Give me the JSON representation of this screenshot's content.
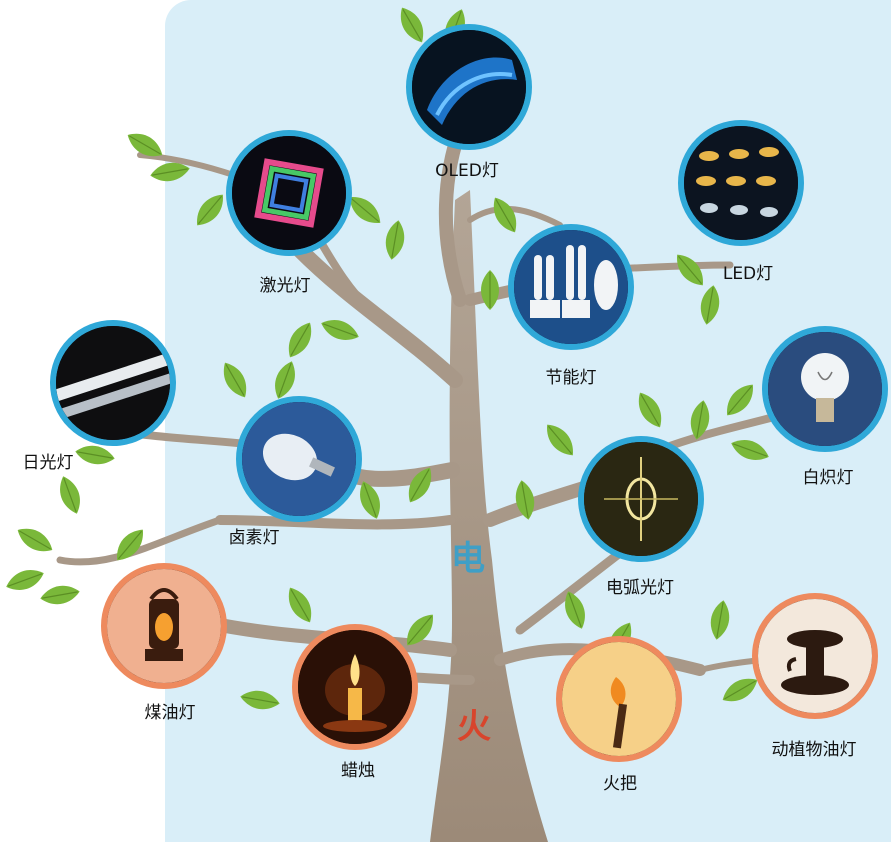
{
  "trunk": {
    "top_char": "电",
    "bottom_char": "火",
    "colors": {
      "top": "#3f9fc6",
      "bottom": "#d8452c"
    }
  },
  "nodes": {
    "oled": "OLED灯",
    "laser": "激光灯",
    "led": "LED灯",
    "cfl": "节能灯",
    "fluorescent": "日光灯",
    "halogen": "卤素灯",
    "incandescent": "白炽灯",
    "arc": "电弧光灯",
    "kerosene": "煤油灯",
    "candle": "蜡烛",
    "torch": "火把",
    "oil_lamp": "动植物油灯"
  },
  "colors": {
    "electric_ring": "#2fa8d8",
    "fire_ring": "#ee8a5e",
    "trunk": "#a89888",
    "leaf": "#7ab83a",
    "panel": "#d9eef8"
  }
}
